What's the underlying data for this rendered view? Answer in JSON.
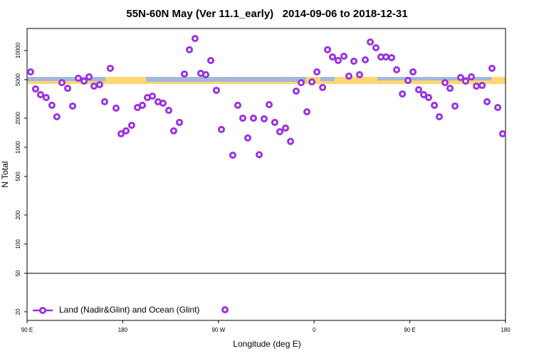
{
  "chart_data": {
    "type": "scatter",
    "title": "55N-60N May (Ver 11.1_early)   2014-09-06 to 2018-12-31",
    "x_label": "Longitude (deg E)",
    "y_label": "N Total",
    "log_y": true,
    "reference_line": 50,
    "legend": "bottom-left",
    "xlim": [
      90,
      540
    ],
    "xticks": [
      {
        "value": 90,
        "label": "90 E"
      },
      {
        "value": 180,
        "label": "180"
      },
      {
        "value": 270,
        "label": "90 W"
      },
      {
        "value": 360,
        "label": "0"
      },
      {
        "value": 450,
        "label": "90 E"
      },
      {
        "value": 540,
        "label": "180"
      }
    ],
    "ylim": [
      16.3,
      16900
    ],
    "yticks": [
      20,
      50,
      100,
      200,
      500,
      1000,
      2000,
      5000,
      10000
    ],
    "series": [
      {
        "name": "Land (Nadir&Glint) and Ocean (Glint)",
        "color": "#9b30e0",
        "x": [
          93.3,
          98,
          102.7,
          108,
          113.4,
          118,
          122.8,
          128.2,
          132.9,
          138.2,
          143.6,
          148.3,
          153,
          158.3,
          163,
          168.3,
          173.7,
          178.4,
          183.1,
          188.4,
          193.8,
          198.5,
          203.2,
          207.9,
          213.2,
          217.9,
          223.3,
          227.9,
          233.3,
          238,
          242.7,
          248,
          253.4,
          258.1,
          262.8,
          268.1,
          272.8,
          276.2,
          283.5,
          288.2,
          292.9,
          297.6,
          303,
          308.3,
          313,
          317.7,
          323,
          327.7,
          333.1,
          337.8,
          343.1,
          347.8,
          353.2,
          357.9,
          362.6,
          368,
          372.6,
          377.3,
          382.6,
          388,
          392.7,
          397.4,
          402.7,
          408.1,
          412.8,
          418.1,
          422.8,
          427.5,
          432.9,
          437.6,
          443,
          448.3,
          453,
          458.3,
          463,
          467.7,
          473.1,
          477.7,
          483.1,
          487.8,
          492.5,
          497.8,
          502.5,
          507.9,
          512.6,
          518,
          522.6,
          527.3,
          532.7,
          537.3
        ],
        "values": [
          6020,
          4010,
          3500,
          3270,
          2720,
          2070,
          4660,
          4070,
          2670,
          5170,
          4830,
          5350,
          4290,
          4440,
          2960,
          6550,
          2540,
          1380,
          1480,
          1690,
          2580,
          2720,
          3270,
          3380,
          2960,
          2860,
          2410,
          1480,
          1810,
          5720,
          10200,
          13300,
          5820,
          5630,
          7890,
          3880,
          1530,
          21,
          830,
          2720,
          2000,
          1250,
          2000,
          840,
          1970,
          2760,
          1810,
          1450,
          1580,
          1150,
          3810,
          4660,
          2330,
          4740,
          6020,
          4150,
          10200,
          8590,
          7890,
          8730,
          5440,
          7760,
          5630,
          8020,
          12250,
          10700,
          8590,
          8590,
          8440,
          6330,
          3560,
          4910,
          6020,
          3940,
          3500,
          3270,
          2720,
          2070,
          4660,
          4070,
          2670,
          5260,
          4830,
          5350,
          4290,
          4360,
          2960,
          6550,
          2580,
          1380
        ]
      }
    ]
  }
}
